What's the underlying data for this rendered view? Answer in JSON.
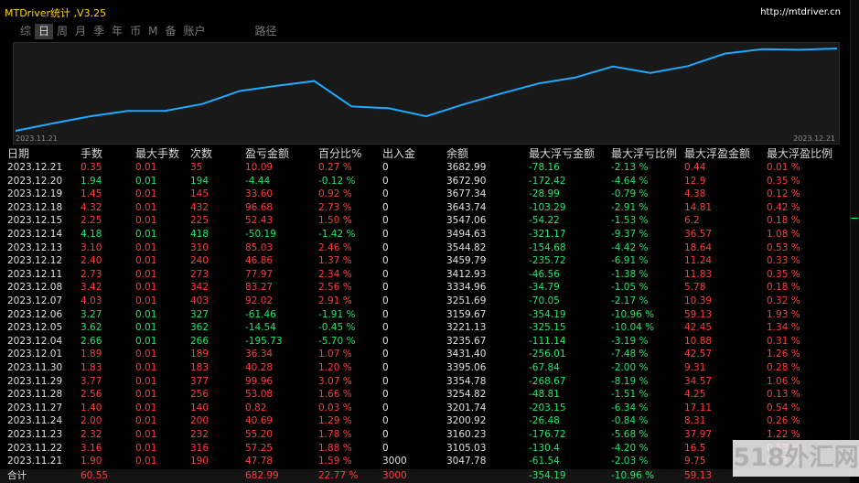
{
  "app": {
    "title": "MTDriver统计 ,V3.25",
    "url": "http://mtdriver.cn"
  },
  "tabs": [
    "综",
    "日",
    "周",
    "月",
    "季",
    "年",
    "币",
    "M",
    "备",
    "账户",
    "路径"
  ],
  "active_tab": "日",
  "chart": {
    "start_date": "2023.11.21",
    "end_date": "2023.12.21",
    "line_color": "#1eaaff",
    "balance_series": [
      3047.78,
      3105.03,
      3160.23,
      3200.92,
      3201.74,
      3254.82,
      3354.78,
      3395.06,
      3431.4,
      3235.67,
      3221.13,
      3159.67,
      3251.69,
      3334.96,
      3412.93,
      3459.79,
      3544.82,
      3494.63,
      3547.06,
      3643.74,
      3677.34,
      3672.9,
      3682.99
    ]
  },
  "table": {
    "headers": [
      "日期",
      "手数",
      "最大手数",
      "次数",
      "盈亏金额",
      "百分比%",
      "出入金",
      "余额",
      "最大浮亏金额",
      "最大浮亏比例",
      "最大浮盈金额",
      "最大浮盈比例"
    ],
    "rows": [
      {
        "c": [
          "2023.12.21",
          "0.35",
          "0.01",
          "35",
          "10.09",
          "0.27 %",
          "0",
          "3682.99",
          "-78.16",
          "-2.13 %",
          "0.44",
          "0.01 %"
        ],
        "pos": true
      },
      {
        "c": [
          "2023.12.20",
          "1.94",
          "0.01",
          "194",
          "-4.44",
          "-0.12 %",
          "0",
          "3672.90",
          "-172.42",
          "-4.64 %",
          "12.9",
          "0.35 %"
        ],
        "pos": false
      },
      {
        "c": [
          "2023.12.19",
          "1.45",
          "0.01",
          "145",
          "33.60",
          "0.92 %",
          "0",
          "3677.34",
          "-28.99",
          "-0.79 %",
          "4.38",
          "0.12 %"
        ],
        "pos": true
      },
      {
        "c": [
          "2023.12.18",
          "4.32",
          "0.01",
          "432",
          "96.68",
          "2.73 %",
          "0",
          "3643.74",
          "-103.29",
          "-2.91 %",
          "14.81",
          "0.42 %"
        ],
        "pos": true
      },
      {
        "c": [
          "2023.12.15",
          "2.25",
          "0.01",
          "225",
          "52.43",
          "1.50 %",
          "0",
          "3547.06",
          "-54.22",
          "-1.53 %",
          "6.2",
          "0.18 %"
        ],
        "pos": true
      },
      {
        "c": [
          "2023.12.14",
          "4.18",
          "0.01",
          "418",
          "-50.19",
          "-1.42 %",
          "0",
          "3494.63",
          "-321.17",
          "-9.37 %",
          "36.57",
          "1.08 %"
        ],
        "pos": false
      },
      {
        "c": [
          "2023.12.13",
          "3.10",
          "0.01",
          "310",
          "85.03",
          "2.46 %",
          "0",
          "3544.82",
          "-154.68",
          "-4.42 %",
          "18.64",
          "0.53 %"
        ],
        "pos": true
      },
      {
        "c": [
          "2023.12.12",
          "2.40",
          "0.01",
          "240",
          "46.86",
          "1.37 %",
          "0",
          "3459.79",
          "-235.72",
          "-6.91 %",
          "11.24",
          "0.33 %"
        ],
        "pos": true
      },
      {
        "c": [
          "2023.12.11",
          "2.73",
          "0.01",
          "273",
          "77.97",
          "2.34 %",
          "0",
          "3412.93",
          "-46.56",
          "-1.38 %",
          "11.83",
          "0.35 %"
        ],
        "pos": true
      },
      {
        "c": [
          "2023.12.08",
          "3.42",
          "0.01",
          "342",
          "83.27",
          "2.56 %",
          "0",
          "3334.96",
          "-34.79",
          "-1.05 %",
          "5.78",
          "0.18 %"
        ],
        "pos": true
      },
      {
        "c": [
          "2023.12.07",
          "4.03",
          "0.01",
          "403",
          "92.02",
          "2.91 %",
          "0",
          "3251.69",
          "-70.05",
          "-2.17 %",
          "10.39",
          "0.32 %"
        ],
        "pos": true
      },
      {
        "c": [
          "2023.12.06",
          "3.27",
          "0.01",
          "327",
          "-61.46",
          "-1.91 %",
          "0",
          "3159.67",
          "-354.19",
          "-10.96 %",
          "59.13",
          "1.93 %"
        ],
        "pos": false
      },
      {
        "c": [
          "2023.12.05",
          "3.62",
          "0.01",
          "362",
          "-14.54",
          "-0.45 %",
          "0",
          "3221.13",
          "-325.15",
          "-10.04 %",
          "42.45",
          "1.34 %"
        ],
        "pos": false
      },
      {
        "c": [
          "2023.12.04",
          "2.66",
          "0.01",
          "266",
          "-195.73",
          "-5.70 %",
          "0",
          "3235.67",
          "-111.14",
          "-3.19 %",
          "10.88",
          "0.31 %"
        ],
        "pos": false
      },
      {
        "c": [
          "2023.12.01",
          "1.89",
          "0.01",
          "189",
          "36.34",
          "1.07 %",
          "0",
          "3431.40",
          "-256.01",
          "-7.48 %",
          "42.57",
          "1.26 %"
        ],
        "pos": true
      },
      {
        "c": [
          "2023.11.30",
          "1.83",
          "0.01",
          "183",
          "40.28",
          "1.20 %",
          "0",
          "3395.06",
          "-67.84",
          "-2.00 %",
          "9.31",
          "0.28 %"
        ],
        "pos": true
      },
      {
        "c": [
          "2023.11.29",
          "3.77",
          "0.01",
          "377",
          "99.96",
          "3.07 %",
          "0",
          "3354.78",
          "-268.67",
          "-8.19 %",
          "34.57",
          "1.06 %"
        ],
        "pos": true
      },
      {
        "c": [
          "2023.11.28",
          "2.56",
          "0.01",
          "256",
          "53.08",
          "1.66 %",
          "0",
          "3254.82",
          "-48.81",
          "-1.51 %",
          "4.25",
          "0.13 %"
        ],
        "pos": true
      },
      {
        "c": [
          "2023.11.27",
          "1.40",
          "0.01",
          "140",
          "0.82",
          "0.03 %",
          "0",
          "3201.74",
          "-203.15",
          "-6.34 %",
          "17.11",
          "0.54 %"
        ],
        "pos": true
      },
      {
        "c": [
          "2023.11.24",
          "2.00",
          "0.01",
          "200",
          "40.69",
          "1.29 %",
          "0",
          "3200.92",
          "-26.48",
          "-0.84 %",
          "8.31",
          "0.26 %"
        ],
        "pos": true
      },
      {
        "c": [
          "2023.11.23",
          "2.32",
          "0.01",
          "232",
          "55.20",
          "1.78 %",
          "0",
          "3160.23",
          "-176.72",
          "-5.68 %",
          "37.97",
          "1.22 %"
        ],
        "pos": true
      },
      {
        "c": [
          "2023.11.22",
          "3.16",
          "0.01",
          "316",
          "57.25",
          "1.88 %",
          "0",
          "3105.03",
          "-130.4",
          "-4.20 %",
          "16.5",
          "0.53 %"
        ],
        "pos": true
      },
      {
        "c": [
          "2023.11.21",
          "1.90",
          "0.01",
          "190",
          "47.78",
          "1.59 %",
          "3000",
          "3047.78",
          "-61.54",
          "-2.03 %",
          "9.75",
          "0.33 %"
        ],
        "pos": true
      }
    ],
    "total": {
      "label": "合计",
      "lots": "60.55",
      "pnl": "682.99",
      "pct": "22.77 %",
      "deposit": "3000",
      "max_dd": "-354.19",
      "max_dd_pct": "-10.96 %",
      "max_profit": "59.13"
    }
  },
  "watermark": "518外汇网",
  "colors": {
    "positive": "#ff3b3b",
    "negative": "#1ee86a",
    "title": "#ffd400",
    "line": "#1eaaff"
  }
}
